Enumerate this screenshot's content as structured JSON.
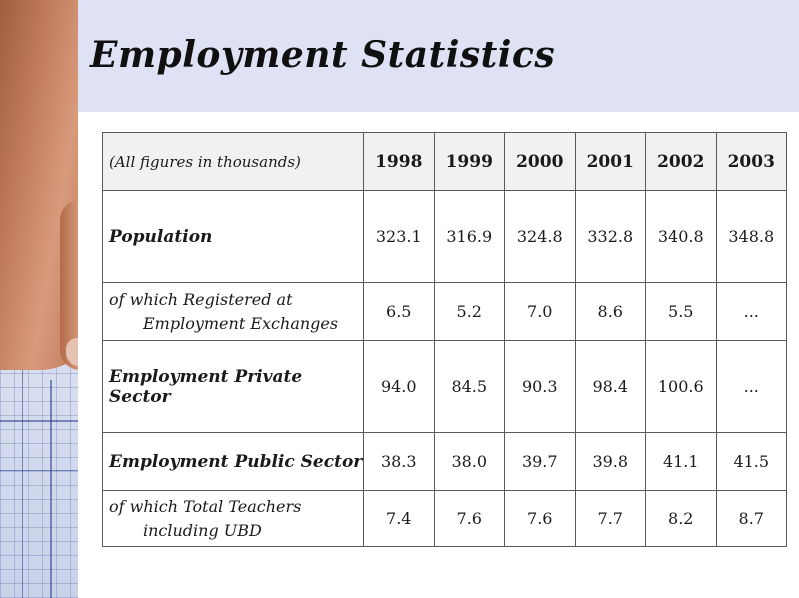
{
  "title": "Employment Statistics",
  "table": {
    "unit_note": "(All figures in thousands)",
    "years": [
      "1998",
      "1999",
      "2000",
      "2001",
      "2002",
      "2003"
    ],
    "rows": [
      {
        "label": "Population",
        "values": [
          "323.1",
          "316.9",
          "324.8",
          "332.8",
          "340.8",
          "348.8"
        ]
      },
      {
        "label_line1": "of which Registered at",
        "label_line2": "Employment Exchanges",
        "values": [
          "6.5",
          "5.2",
          "7.0",
          "8.6",
          "5.5",
          "..."
        ]
      },
      {
        "label": "Employment Private Sector",
        "values": [
          "94.0",
          "84.5",
          "90.3",
          "98.4",
          "100.6",
          "..."
        ]
      },
      {
        "label": "Employment Public Sector",
        "values": [
          "38.3",
          "38.0",
          "39.7",
          "39.8",
          "41.1",
          "41.5"
        ]
      },
      {
        "label_line1": "of which Total Teachers",
        "label_line2": "including UBD",
        "values": [
          "7.4",
          "7.6",
          "7.6",
          "7.7",
          "8.2",
          "8.7"
        ]
      }
    ]
  }
}
